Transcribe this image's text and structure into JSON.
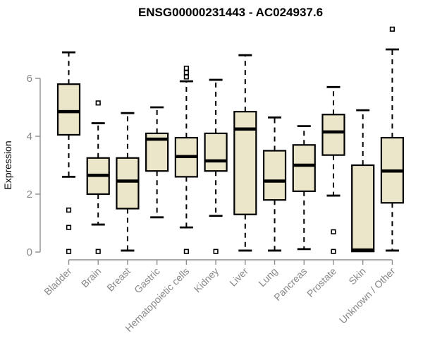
{
  "chart_data": {
    "type": "boxplot",
    "title": "ENSG00000231443 - AC024937.6",
    "ylabel": "Expression",
    "xlabel": "",
    "ylim": [
      0,
      7.8
    ],
    "yticks": [
      "0",
      "2",
      "4",
      "6"
    ],
    "ytick_values": [
      0,
      2,
      4,
      6
    ],
    "grid": false,
    "legend": "none",
    "categories": [
      "Bladder",
      "Brain",
      "Breast",
      "Gastric",
      "Hematopoietic cells",
      "Kidney",
      "Liver",
      "Lung",
      "Pancreas",
      "Prostate",
      "Skin",
      "Unknown / Other"
    ],
    "series": [
      {
        "name": "Bladder",
        "whisker_low": 2.6,
        "q1": 4.05,
        "median": 4.85,
        "q3": 5.8,
        "whisker_high": 6.9,
        "outliers": [
          1.45,
          0.85,
          0.02
        ]
      },
      {
        "name": "Brain",
        "whisker_low": 0.95,
        "q1": 2.0,
        "median": 2.65,
        "q3": 3.25,
        "whisker_high": 4.45,
        "outliers": [
          5.15,
          0.02
        ]
      },
      {
        "name": "Breast",
        "whisker_low": 0.05,
        "q1": 1.5,
        "median": 2.45,
        "q3": 3.25,
        "whisker_high": 4.8,
        "outliers": []
      },
      {
        "name": "Gastric",
        "whisker_low": 1.2,
        "q1": 2.8,
        "median": 3.9,
        "q3": 4.1,
        "whisker_high": 5.0,
        "outliers": []
      },
      {
        "name": "Hematopoietic cells",
        "whisker_low": 0.85,
        "q1": 2.6,
        "median": 3.3,
        "q3": 3.95,
        "whisker_high": 5.9,
        "outliers": [
          6.35,
          6.2,
          6.05,
          0.02
        ]
      },
      {
        "name": "Kidney",
        "whisker_low": 1.25,
        "q1": 2.8,
        "median": 3.15,
        "q3": 4.1,
        "whisker_high": 5.95,
        "outliers": [
          0.02
        ]
      },
      {
        "name": "Liver",
        "whisker_low": 0.05,
        "q1": 1.3,
        "median": 4.25,
        "q3": 4.85,
        "whisker_high": 6.8,
        "outliers": []
      },
      {
        "name": "Lung",
        "whisker_low": 0.05,
        "q1": 1.8,
        "median": 2.45,
        "q3": 3.5,
        "whisker_high": 4.65,
        "outliers": []
      },
      {
        "name": "Pancreas",
        "whisker_low": 0.1,
        "q1": 2.1,
        "median": 3.0,
        "q3": 3.7,
        "whisker_high": 4.35,
        "outliers": []
      },
      {
        "name": "Prostate",
        "whisker_low": 1.95,
        "q1": 3.35,
        "median": 4.15,
        "q3": 4.75,
        "whisker_high": 5.7,
        "outliers": [
          0.7,
          0.02
        ]
      },
      {
        "name": "Skin",
        "whisker_low": 0.02,
        "q1": 0.02,
        "median": 0.07,
        "q3": 3.0,
        "whisker_high": 4.9,
        "outliers": []
      },
      {
        "name": "Unknown / Other",
        "whisker_low": 0.05,
        "q1": 1.7,
        "median": 2.8,
        "q3": 3.95,
        "whisker_high": 7.0,
        "outliers": [
          7.7
        ]
      }
    ],
    "style": {
      "box_fill": "#EBE5CA",
      "box_stroke": "#000000",
      "median_color": "#000000",
      "whisker_color": "#000000",
      "outlier_stroke": "#000000",
      "axis_color": "#8E8E8E",
      "tick_label_color": "#878787",
      "title_color": "#000000",
      "background": "#FFFFFF"
    }
  }
}
